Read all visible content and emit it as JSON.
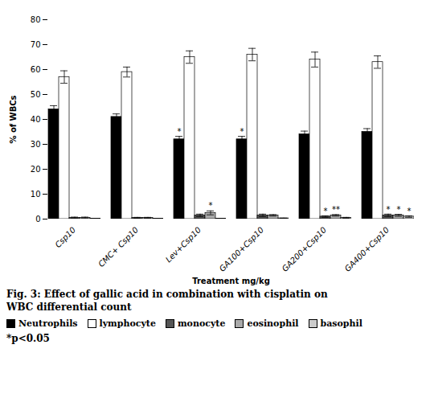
{
  "chart_data": {
    "type": "bar",
    "ylabel": "% of WBCs",
    "xlabel": "Treatment mg/kg",
    "categories": [
      "Csp10",
      "CMC+ Csp10",
      "Lev+Csp10",
      "GA100+Csp10",
      "GA200+Csp10",
      "GA400+Csp10"
    ],
    "series": [
      {
        "name": "Neutrophils",
        "color": "#000000",
        "values": [
          44,
          41,
          32,
          32,
          34,
          35
        ],
        "errors": [
          1.5,
          1.2,
          1.2,
          1.2,
          1.3,
          1.3
        ]
      },
      {
        "name": "lymphocyte",
        "color": "#ffffff",
        "values": [
          57,
          59,
          65,
          66,
          64,
          63
        ],
        "errors": [
          2.5,
          2.0,
          2.5,
          2.5,
          3.0,
          2.5
        ]
      },
      {
        "name": "monocyte",
        "color": "#555555",
        "values": [
          0.5,
          0.5,
          1.5,
          1.5,
          1.0,
          1.5
        ],
        "errors": [
          0.3,
          0.2,
          0.5,
          0.5,
          0.3,
          0.5
        ]
      },
      {
        "name": "eosinophil",
        "color": "#aaaaaa",
        "values": [
          0.5,
          0.5,
          2.5,
          1.5,
          1.5,
          1.5
        ],
        "errors": [
          0.3,
          0.2,
          0.8,
          0.3,
          0.3,
          0.4
        ]
      },
      {
        "name": "basophil",
        "color": "#cccccc",
        "values": [
          0.2,
          0.2,
          0.2,
          0.3,
          0.5,
          1.0
        ],
        "errors": [
          0.1,
          0.1,
          0.1,
          0.1,
          0.2,
          0.3
        ]
      }
    ],
    "ylim": [
      0,
      80
    ],
    "yticks": [
      0,
      10,
      20,
      30,
      40,
      50,
      60,
      70,
      80
    ],
    "grid": false,
    "legend": "bottom",
    "annotations": [
      {
        "series": "Neutrophils",
        "category": "Lev+Csp10",
        "text": "*"
      },
      {
        "series": "Neutrophils",
        "category": "GA100+Csp10",
        "text": "*"
      },
      {
        "series": "monocyte",
        "category": "GA200+Csp10",
        "text": "*"
      },
      {
        "series": "monocyte",
        "category": "GA400+Csp10",
        "text": "*"
      },
      {
        "series": "eosinophil",
        "category": "Lev+Csp10",
        "text": "*"
      },
      {
        "series": "eosinophil",
        "category": "GA200+Csp10",
        "text": "**"
      },
      {
        "series": "eosinophil",
        "category": "GA400+Csp10",
        "text": "*"
      },
      {
        "series": "basophil",
        "category": "GA400+Csp10",
        "text": "*"
      }
    ],
    "caption": [
      "Fig. 3: Effect of gallic acid in combination with cisplatin on",
      "WBC differential count"
    ],
    "note": "*p<0.05"
  }
}
